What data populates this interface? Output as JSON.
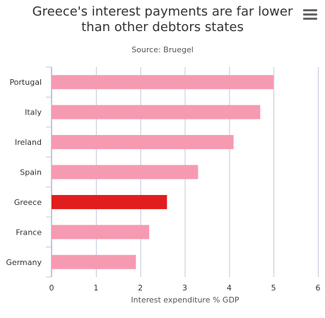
{
  "chart_data": {
    "type": "bar",
    "orientation": "horizontal",
    "title": "Greece's interest payments are far lower than other debtors states",
    "title_lines": [
      "Greece's interest payments are far lower",
      "than other debtors states"
    ],
    "subtitle": "Source: Bruegel",
    "categories": [
      "Portugal",
      "Italy",
      "Ireland",
      "Spain",
      "Greece",
      "France",
      "Germany"
    ],
    "series": [
      {
        "values": [
          5.0,
          4.7,
          4.1,
          3.3,
          2.6,
          2.2,
          1.9
        ]
      }
    ],
    "highlight": "Greece",
    "colors": {
      "default": "#f69ab1",
      "highlight": "#e21d1d",
      "grid": "#c0c8d8",
      "axis": "#c0c8d8"
    },
    "xlabel": "Interest expenditure % GDP",
    "xlim": [
      0,
      6
    ],
    "xticks": [
      0,
      1,
      2,
      3,
      4,
      5,
      6
    ],
    "grid": true,
    "legend": "none"
  },
  "menu": {
    "icon": "hamburger-menu-icon"
  }
}
